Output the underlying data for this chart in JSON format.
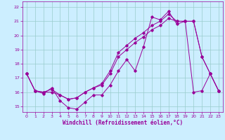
{
  "xlabel": "Windchill (Refroidissement éolien,°C)",
  "xlim": [
    -0.5,
    23.5
  ],
  "ylim": [
    14.6,
    22.4
  ],
  "yticks": [
    15,
    16,
    17,
    18,
    19,
    20,
    21,
    22
  ],
  "xticks": [
    0,
    1,
    2,
    3,
    4,
    5,
    6,
    7,
    8,
    9,
    10,
    11,
    12,
    13,
    14,
    15,
    16,
    17,
    18,
    19,
    20,
    21,
    22,
    23
  ],
  "background_color": "#cceeff",
  "grid_color": "#99cccc",
  "line_color": "#990099",
  "line1_x": [
    0,
    1,
    2,
    3,
    4,
    5,
    6,
    7,
    8,
    9,
    10,
    11,
    12,
    13,
    14,
    15,
    16,
    17,
    18,
    19,
    20,
    21,
    22,
    23
  ],
  "line1_y": [
    17.3,
    16.1,
    15.9,
    16.3,
    15.4,
    14.9,
    14.8,
    15.3,
    15.8,
    15.8,
    16.5,
    17.5,
    18.3,
    17.5,
    19.2,
    21.3,
    21.1,
    21.7,
    20.8,
    21.0,
    16.0,
    16.1,
    17.3,
    16.1
  ],
  "line2_x": [
    0,
    1,
    2,
    3,
    4,
    5,
    6,
    7,
    8,
    9,
    10,
    11,
    12,
    13,
    14,
    15,
    16,
    17,
    18,
    19,
    20,
    21,
    22,
    23
  ],
  "line2_y": [
    17.3,
    16.1,
    16.0,
    16.2,
    15.8,
    15.5,
    15.6,
    16.0,
    16.3,
    16.6,
    17.5,
    18.8,
    19.3,
    19.8,
    20.2,
    20.7,
    21.0,
    21.5,
    21.0,
    21.0,
    21.0,
    18.5,
    17.3,
    16.1
  ],
  "line3_x": [
    0,
    1,
    2,
    3,
    4,
    5,
    6,
    7,
    8,
    9,
    10,
    11,
    12,
    13,
    14,
    15,
    16,
    17,
    18,
    19,
    20,
    21,
    22,
    23
  ],
  "line3_y": [
    17.3,
    16.1,
    16.0,
    16.0,
    15.8,
    15.5,
    15.6,
    16.0,
    16.3,
    16.5,
    17.3,
    18.5,
    19.0,
    19.5,
    19.9,
    20.4,
    20.7,
    21.2,
    21.0,
    21.0,
    21.0,
    18.5,
    17.3,
    16.1
  ],
  "tick_labelsize": 4.5,
  "xlabel_fontsize": 5.5,
  "marker_size": 1.8,
  "line_width": 0.7
}
